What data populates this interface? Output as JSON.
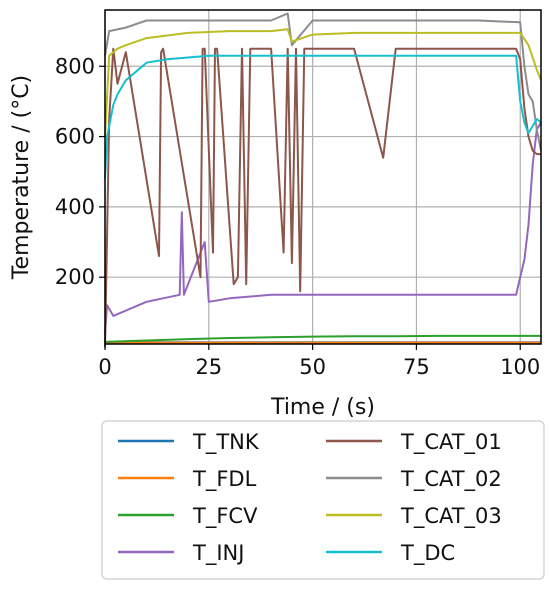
{
  "chart_data": {
    "type": "line",
    "xlabel": "Time / (s)",
    "ylabel": "Temperature / (°C)",
    "xlim": [
      0,
      105
    ],
    "ylim": [
      10,
      960
    ],
    "xticks": [
      0,
      25,
      50,
      75,
      100
    ],
    "yticks": [
      200,
      400,
      600,
      800
    ],
    "grid": true,
    "legend_position": "below",
    "series": [
      {
        "name": "T_TNK",
        "color": "#1f77b4",
        "x": [
          0,
          25,
          50,
          75,
          100,
          105
        ],
        "y": [
          15,
          15,
          15,
          15,
          15,
          15
        ]
      },
      {
        "name": "T_FDL",
        "color": "#ff7f0e",
        "x": [
          0,
          25,
          50,
          75,
          100,
          105
        ],
        "y": [
          14,
          14,
          14,
          14,
          14,
          14
        ]
      },
      {
        "name": "T_FCV",
        "color": "#2ca02c",
        "x": [
          0,
          10,
          20,
          30,
          40,
          50,
          60,
          70,
          80,
          90,
          100,
          105
        ],
        "y": [
          16,
          20,
          24,
          27,
          29,
          31,
          32,
          32,
          33,
          33,
          33,
          33
        ]
      },
      {
        "name": "T_INJ",
        "color": "#9467bd",
        "x": [
          0,
          0.5,
          2,
          10,
          18,
          18.5,
          19,
          24,
          25,
          30,
          40,
          50,
          60,
          70,
          80,
          90,
          99,
          100,
          101,
          102,
          103,
          104,
          105
        ],
        "y": [
          40,
          120,
          90,
          130,
          150,
          385,
          150,
          300,
          130,
          140,
          150,
          150,
          150,
          150,
          150,
          150,
          150,
          200,
          250,
          350,
          520,
          620,
          640
        ]
      },
      {
        "name": "T_CAT_01",
        "color": "#8c564b",
        "x": [
          0,
          1,
          2,
          3,
          5,
          13,
          13.5,
          14,
          23,
          23.5,
          24,
          26,
          26.5,
          27,
          31,
          32,
          33,
          34,
          35,
          37,
          40,
          43,
          44,
          45,
          46,
          47,
          48,
          49,
          55,
          60,
          67,
          70,
          75,
          85,
          95,
          99,
          100,
          101,
          102,
          103,
          104,
          105
        ],
        "y": [
          0,
          650,
          850,
          750,
          840,
          260,
          840,
          850,
          200,
          850,
          850,
          270,
          850,
          850,
          180,
          200,
          850,
          180,
          850,
          850,
          850,
          270,
          850,
          240,
          850,
          160,
          850,
          850,
          850,
          850,
          540,
          850,
          850,
          850,
          850,
          850,
          820,
          680,
          600,
          560,
          550,
          550
        ]
      },
      {
        "name": "T_CAT_02",
        "color": "#8c8c8c",
        "x": [
          0,
          1,
          5,
          10,
          20,
          30,
          40,
          44,
          45,
          50,
          60,
          70,
          80,
          90,
          100,
          101,
          102,
          103,
          104,
          105
        ],
        "y": [
          830,
          900,
          910,
          930,
          930,
          930,
          930,
          950,
          860,
          930,
          930,
          930,
          930,
          930,
          925,
          800,
          720,
          700,
          620,
          560
        ]
      },
      {
        "name": "T_CAT_03",
        "color": "#bcbd22",
        "x": [
          0,
          1,
          3,
          5,
          10,
          20,
          30,
          40,
          44,
          45,
          50,
          60,
          70,
          80,
          90,
          100,
          102,
          104,
          105
        ],
        "y": [
          600,
          830,
          850,
          860,
          880,
          895,
          900,
          900,
          905,
          870,
          890,
          895,
          895,
          895,
          895,
          895,
          860,
          790,
          760
        ]
      },
      {
        "name": "T_DC",
        "color": "#17becf",
        "x": [
          0,
          0.5,
          1,
          2,
          3,
          5,
          8,
          10,
          15,
          20,
          25,
          30,
          40,
          50,
          60,
          70,
          80,
          90,
          99,
          100,
          101,
          102,
          103,
          104,
          105
        ],
        "y": [
          480,
          600,
          630,
          690,
          720,
          760,
          790,
          810,
          820,
          825,
          830,
          830,
          830,
          830,
          830,
          830,
          830,
          830,
          830,
          700,
          640,
          610,
          630,
          650,
          640
        ]
      }
    ]
  }
}
